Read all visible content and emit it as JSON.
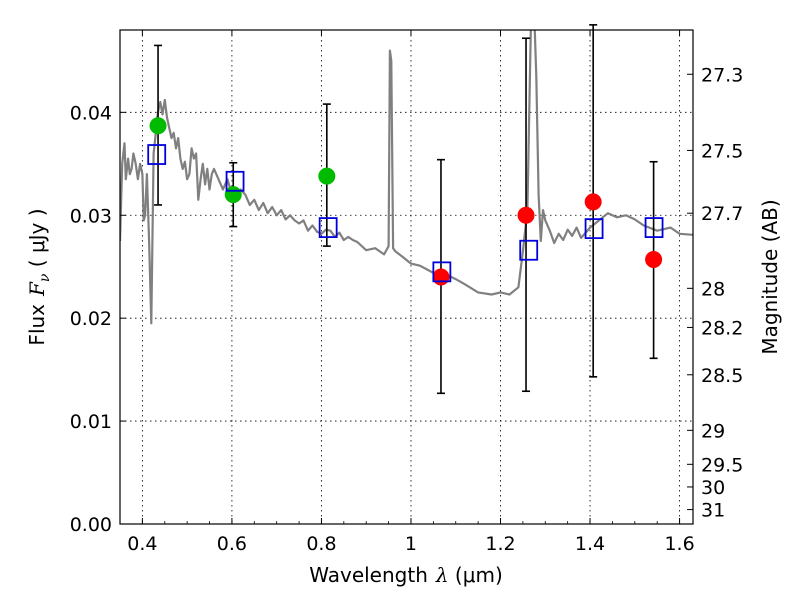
{
  "chart_data": {
    "type": "scatter",
    "xlabel": "Wavelength",
    "xlabel_math": "λ",
    "xlabel_unit": " (μm)",
    "ylabel": "Flux",
    "ylabel_math": "F",
    "ylabel_math_sub": "ν",
    "ylabel_unit": " ( μJy )",
    "ylabel_right": "Magnitude (AB)",
    "xlim": [
      0.35,
      1.63
    ],
    "ylim": [
      0.0,
      0.048
    ],
    "grid": true,
    "x_ticks": [
      0.4,
      0.6,
      0.8,
      1.0,
      1.2,
      1.4,
      1.6
    ],
    "x_tick_labels": [
      "0.4",
      "0.6",
      "0.8",
      "1",
      "1.2",
      "1.4",
      "1.6"
    ],
    "y_ticks": [
      0.0,
      0.01,
      0.02,
      0.03,
      0.04
    ],
    "y_tick_labels": [
      "0.00",
      "0.01",
      "0.02",
      "0.03",
      "0.04"
    ],
    "right_ticks": [
      {
        "label": "27.3",
        "flux": 0.0437
      },
      {
        "label": "27.5",
        "flux": 0.0363
      },
      {
        "label": "27.7",
        "flux": 0.0302
      },
      {
        "label": "28",
        "flux": 0.0229
      },
      {
        "label": "28.2",
        "flux": 0.0191
      },
      {
        "label": "28.5",
        "flux": 0.0145
      },
      {
        "label": "29",
        "flux": 0.0091
      },
      {
        "label": "29.5",
        "flux": 0.0058
      },
      {
        "label": "30",
        "flux": 0.0036
      },
      {
        "label": "31",
        "flux": 0.0014
      }
    ],
    "series": [
      {
        "type": "line",
        "color": "#808080",
        "x": [
          0.35,
          0.355,
          0.36,
          0.363,
          0.368,
          0.372,
          0.376,
          0.38,
          0.385,
          0.39,
          0.395,
          0.4,
          0.403,
          0.406,
          0.41,
          0.415,
          0.42,
          0.425,
          0.43,
          0.433,
          0.437,
          0.44,
          0.445,
          0.45,
          0.455,
          0.46,
          0.465,
          0.47,
          0.475,
          0.48,
          0.485,
          0.49,
          0.495,
          0.5,
          0.505,
          0.51,
          0.515,
          0.52,
          0.525,
          0.53,
          0.535,
          0.54,
          0.545,
          0.55,
          0.555,
          0.56,
          0.57,
          0.58,
          0.59,
          0.6,
          0.61,
          0.62,
          0.63,
          0.64,
          0.65,
          0.66,
          0.67,
          0.68,
          0.69,
          0.7,
          0.71,
          0.72,
          0.73,
          0.74,
          0.75,
          0.76,
          0.77,
          0.78,
          0.79,
          0.8,
          0.81,
          0.82,
          0.83,
          0.84,
          0.85,
          0.86,
          0.87,
          0.88,
          0.9,
          0.92,
          0.94,
          0.95,
          0.953,
          0.956,
          0.96,
          0.965,
          0.98,
          1.0,
          1.02,
          1.05,
          1.08,
          1.1,
          1.12,
          1.15,
          1.18,
          1.2,
          1.22,
          1.24,
          1.25,
          1.26,
          1.268,
          1.275,
          1.28,
          1.285,
          1.29,
          1.295,
          1.3,
          1.31,
          1.32,
          1.33,
          1.34,
          1.35,
          1.36,
          1.37,
          1.38,
          1.4,
          1.42,
          1.44,
          1.46,
          1.48,
          1.5,
          1.52,
          1.55,
          1.58,
          1.6,
          1.63
        ],
        "y": [
          0.0275,
          0.035,
          0.037,
          0.0335,
          0.0355,
          0.034,
          0.0345,
          0.036,
          0.035,
          0.0335,
          0.035,
          0.034,
          0.0295,
          0.03,
          0.034,
          0.0275,
          0.0195,
          0.036,
          0.038,
          0.0395,
          0.0405,
          0.041,
          0.0398,
          0.0412,
          0.0395,
          0.0385,
          0.0375,
          0.038,
          0.0365,
          0.0375,
          0.0355,
          0.0345,
          0.0352,
          0.0335,
          0.034,
          0.0365,
          0.0355,
          0.036,
          0.0315,
          0.0335,
          0.035,
          0.033,
          0.0345,
          0.0325,
          0.034,
          0.0345,
          0.0335,
          0.0325,
          0.0335,
          0.032,
          0.0315,
          0.0325,
          0.032,
          0.031,
          0.0315,
          0.0305,
          0.0312,
          0.0302,
          0.0308,
          0.03,
          0.0305,
          0.0296,
          0.03,
          0.0295,
          0.0292,
          0.0295,
          0.0285,
          0.029,
          0.0284,
          0.0282,
          0.0286,
          0.0285,
          0.0279,
          0.0283,
          0.0276,
          0.0279,
          0.0276,
          0.0274,
          0.0266,
          0.0268,
          0.0262,
          0.027,
          0.046,
          0.045,
          0.0268,
          0.0265,
          0.026,
          0.0253,
          0.0251,
          0.0244,
          0.0242,
          0.0238,
          0.0233,
          0.0225,
          0.0223,
          0.0225,
          0.0223,
          0.023,
          0.0265,
          0.0305,
          0.0485,
          0.05,
          0.0435,
          0.032,
          0.0275,
          0.0305,
          0.0295,
          0.0285,
          0.0273,
          0.0282,
          0.0276,
          0.0286,
          0.028,
          0.0288,
          0.0278,
          0.0288,
          0.0295,
          0.0302,
          0.0298,
          0.03,
          0.0296,
          0.029,
          0.0285,
          0.0288,
          0.0282,
          0.0281
        ]
      },
      {
        "type": "errorbar",
        "color": "#000000",
        "x": [
          0.435,
          0.603,
          0.812,
          1.067,
          1.257,
          1.407,
          1.542
        ],
        "y": [
          0.0387,
          0.032,
          0.0338,
          0.024,
          0.03,
          0.0313,
          0.0257
        ],
        "yerr_low": [
          0.031,
          0.0289,
          0.027,
          0.0127,
          0.0129,
          0.0143,
          0.0161
        ],
        "yerr_high": [
          0.0465,
          0.0351,
          0.0408,
          0.0354,
          0.0472,
          0.0485,
          0.0352
        ]
      },
      {
        "type": "scatter",
        "marker": "circle",
        "color": "#00bb00",
        "x": [
          0.435,
          0.603,
          0.812
        ],
        "y": [
          0.0387,
          0.032,
          0.0338
        ]
      },
      {
        "type": "scatter",
        "marker": "circle",
        "color": "#ff0000",
        "x": [
          1.067,
          1.257,
          1.407,
          1.542
        ],
        "y": [
          0.024,
          0.03,
          0.0313,
          0.0257
        ]
      },
      {
        "type": "scatter",
        "marker": "open-square",
        "color": "#0000dd",
        "x": [
          0.432,
          0.607,
          0.815,
          1.069,
          1.263,
          1.409,
          1.543
        ],
        "y": [
          0.0359,
          0.0333,
          0.0288,
          0.0245,
          0.0266,
          0.0287,
          0.0288
        ]
      }
    ]
  }
}
